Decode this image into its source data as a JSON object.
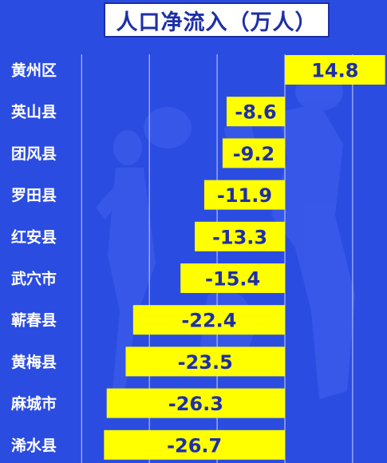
{
  "chart_data": {
    "type": "bar",
    "orientation": "horizontal",
    "title": "人口净流入（万人）",
    "categories": [
      "黄州区",
      "英山县",
      "团风县",
      "罗田县",
      "红安县",
      "武穴市",
      "蕲春县",
      "黄梅县",
      "麻城市",
      "浠水县"
    ],
    "values": [
      14.8,
      -8.6,
      -9.2,
      -11.9,
      -13.3,
      -15.4,
      -22.4,
      -23.5,
      -26.3,
      -26.7
    ],
    "value_labels": [
      "14.8",
      "-8.6",
      "-9.2",
      "-11.9",
      "-13.3",
      "-15.4",
      "-22.4",
      "-23.5",
      "-26.3",
      "-26.7"
    ],
    "xlim": [
      -30,
      15
    ],
    "grid": true,
    "colors": {
      "background": "#2b4ce0",
      "bar": "#ffff00",
      "label_text": "#1e2fa8",
      "category_text": "#ffffff",
      "gridline": "#d0d8ff",
      "title_text": "#1e2fa8"
    }
  }
}
